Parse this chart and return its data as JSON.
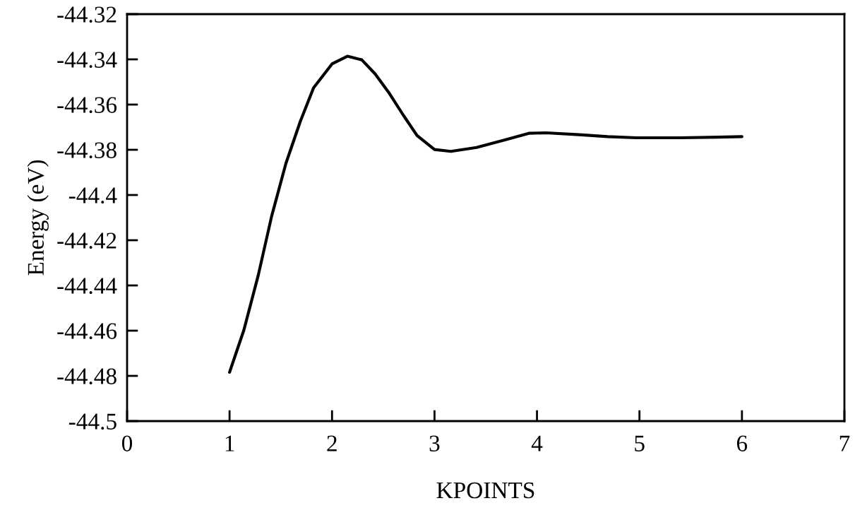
{
  "chart_data": {
    "type": "line",
    "xlabel": "KPOINTS",
    "ylabel": "Energy (eV)",
    "series": [
      {
        "color": "#000000",
        "x": [
          1,
          1.14,
          1.28,
          1.41,
          1.55,
          1.69,
          1.82,
          2,
          2.15,
          2.29,
          2.42,
          2.56,
          2.7,
          2.83,
          3,
          3.16,
          3.41,
          3.7,
          3.92,
          4.09,
          4.41,
          4.69,
          4.97,
          5.4,
          6
        ],
        "values": [
          -44.4784,
          -44.4597,
          -44.4355,
          -44.4095,
          -44.386,
          -44.3675,
          -44.3526,
          -44.342,
          -44.3386,
          -44.3402,
          -44.3464,
          -44.3551,
          -44.365,
          -44.3737,
          -44.3799,
          -44.3807,
          -44.379,
          -44.3755,
          -44.3727,
          -44.3725,
          -44.3733,
          -44.3742,
          -44.3747,
          -44.3747,
          -44.3742
        ]
      }
    ],
    "xlim": [
      0,
      7
    ],
    "xticks": [
      0,
      1,
      2,
      3,
      4,
      5,
      6,
      7
    ],
    "ylim": [
      -44.5,
      -44.32
    ],
    "yticks": [
      -44.5,
      -44.48,
      -44.46,
      -44.44,
      -44.42,
      -44.4,
      -44.38,
      -44.36,
      -44.34,
      -44.32
    ],
    "grid": false,
    "legend": false,
    "marker": "none",
    "line_style": "solid"
  }
}
